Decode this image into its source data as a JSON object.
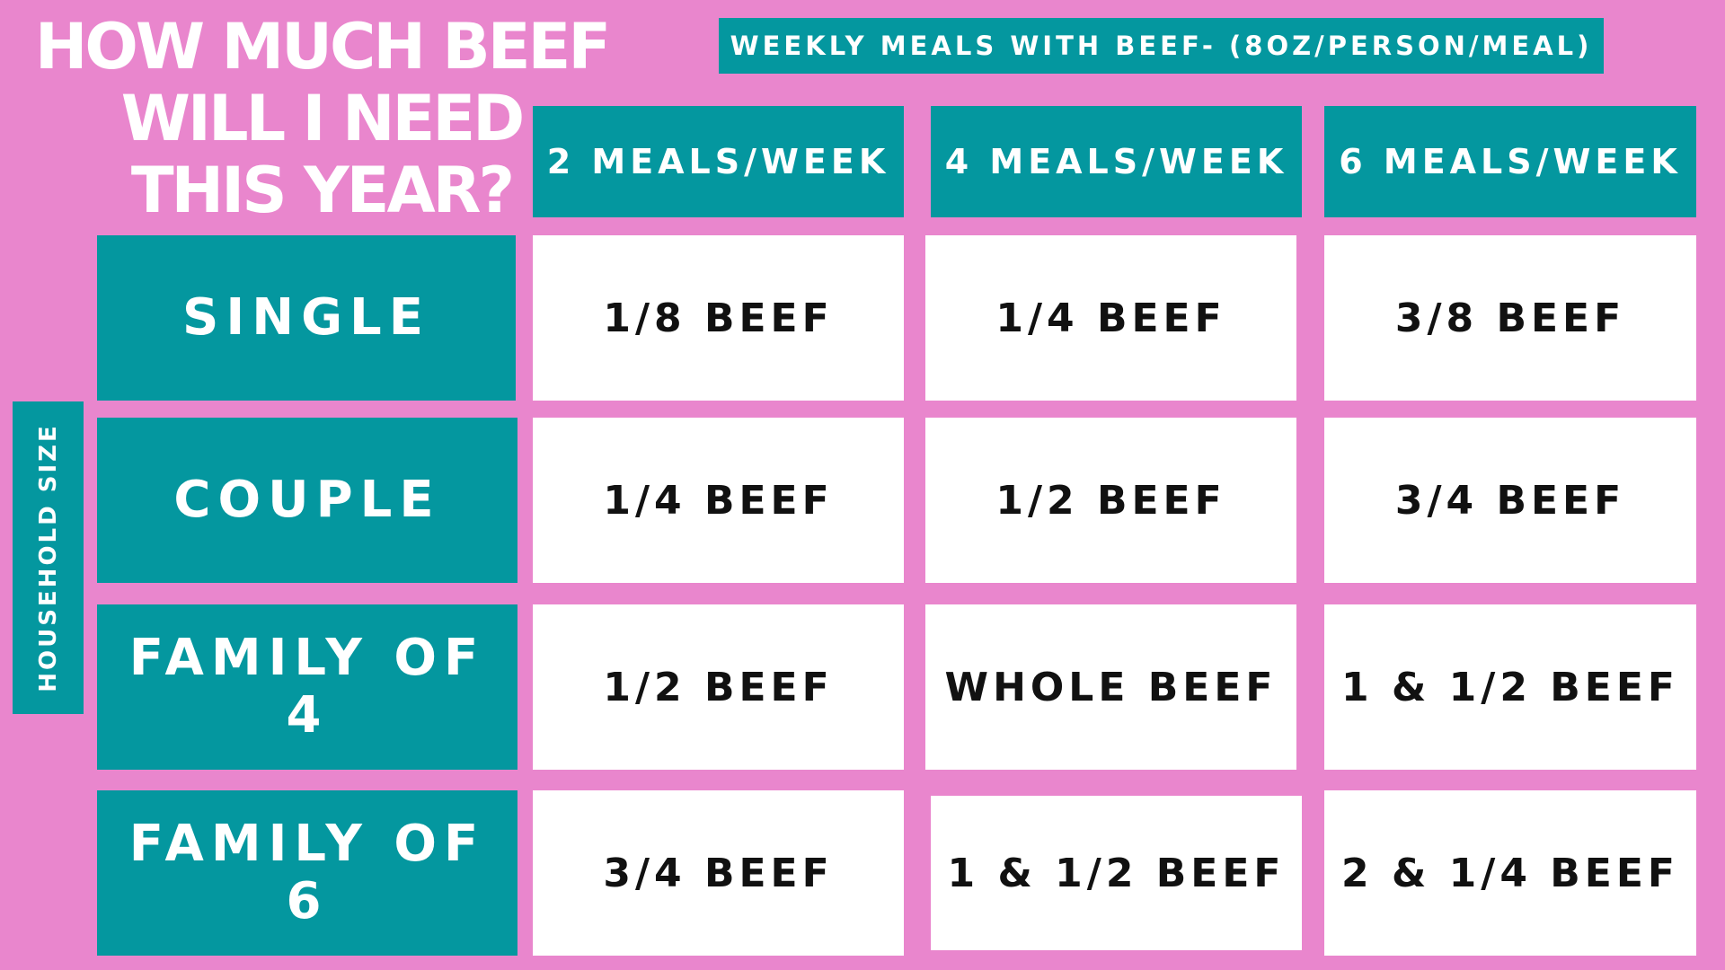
{
  "chart_data": {
    "type": "table",
    "title": "HOW MUCH BEEF WILL I NEED THIS YEAR?",
    "title_lines": [
      "HOW MUCH BEEF",
      "WILL I NEED",
      "THIS YEAR?"
    ],
    "column_group_label": "WEEKLY MEALS WITH BEEF- (8OZ/PERSON/MEAL)",
    "row_group_label": "HOUSEHOLD SIZE",
    "columns": [
      "2 MEALS/WEEK",
      "4 MEALS/WEEK",
      "6 MEALS/WEEK"
    ],
    "rows": [
      {
        "label": "SINGLE",
        "values": [
          "1/8 BEEF",
          "1/4 BEEF",
          "3/8 BEEF"
        ]
      },
      {
        "label": "COUPLE",
        "values": [
          "1/4 BEEF",
          "1/2 BEEF",
          "3/4 BEEF"
        ]
      },
      {
        "label": "FAMILY OF 4",
        "values": [
          "1/2 BEEF",
          "WHOLE BEEF",
          "1 & 1/2 BEEF"
        ]
      },
      {
        "label": "FAMILY OF 6",
        "values": [
          "3/4 BEEF",
          "1 & 1/2  BEEF",
          "2 & 1/4 BEEF"
        ]
      }
    ]
  },
  "colors": {
    "background": "#e986cd",
    "header": "#04979f",
    "cell": "#ffffff",
    "header_text": "#ffffff",
    "cell_text": "#111111"
  }
}
